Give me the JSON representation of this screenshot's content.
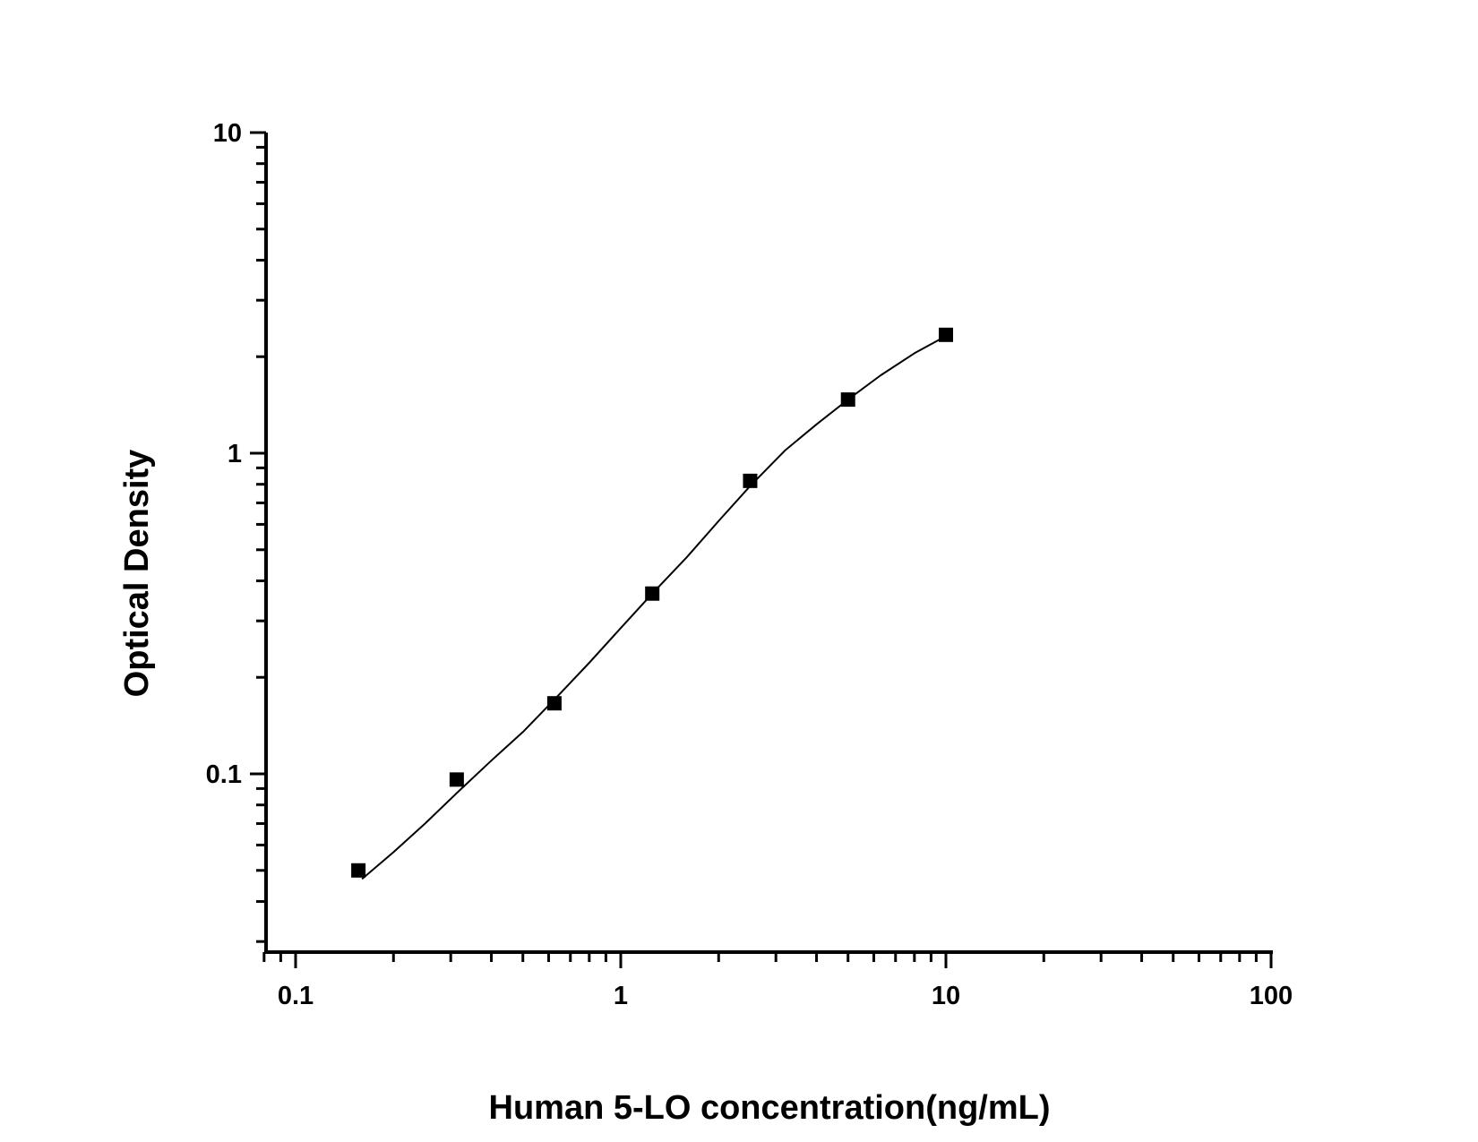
{
  "chart_data": {
    "type": "scatter",
    "title": "",
    "xlabel": "Human 5-LO concentration(ng/mL)",
    "ylabel": "Optical Density",
    "xscale": "log",
    "yscale": "log",
    "xlim": [
      0.08,
      100
    ],
    "ylim": [
      0.03,
      10
    ],
    "x_ticks": [
      0.1,
      1,
      10,
      100
    ],
    "x_tick_labels": [
      "0.1",
      "1",
      "10",
      "100"
    ],
    "y_ticks": [
      0.1,
      1,
      10
    ],
    "y_tick_labels": [
      "0.1",
      "1",
      "10"
    ],
    "grid": false,
    "legend": null,
    "series": [
      {
        "name": "Standard points",
        "marker": "filled-square",
        "color": "#000000",
        "x": [
          0.156,
          0.313,
          0.625,
          1.25,
          2.5,
          5,
          10
        ],
        "y": [
          0.05,
          0.096,
          0.166,
          0.365,
          0.82,
          1.47,
          2.34
        ]
      },
      {
        "name": "Fitted curve",
        "style": "line",
        "color": "#000000",
        "x": [
          0.16,
          0.2,
          0.25,
          0.32,
          0.4,
          0.5,
          0.63,
          0.8,
          1.0,
          1.25,
          1.6,
          2.0,
          2.5,
          3.2,
          4.0,
          5.0,
          6.3,
          8.0,
          10.0
        ],
        "y": [
          0.047,
          0.057,
          0.07,
          0.089,
          0.11,
          0.135,
          0.172,
          0.222,
          0.285,
          0.365,
          0.475,
          0.615,
          0.79,
          1.02,
          1.23,
          1.47,
          1.75,
          2.05,
          2.32
        ]
      }
    ]
  },
  "labels": {
    "x_title": "Human 5-LO concentration(ng/mL)",
    "y_title": "Optical Density"
  }
}
